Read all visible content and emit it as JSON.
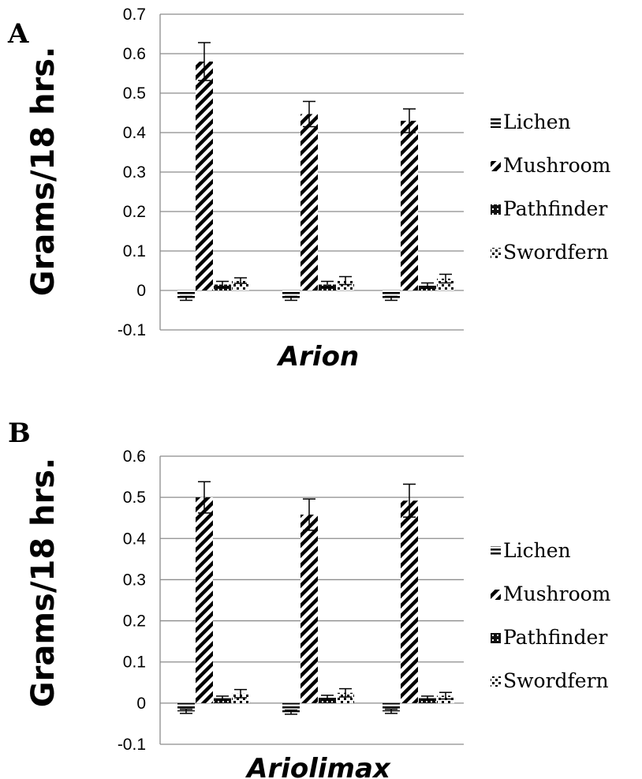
{
  "chart_data": [
    {
      "type": "bar",
      "panel_label": "A",
      "title": "",
      "xlabel": "Arion",
      "ylabel": "Grams/18 hrs.",
      "ylim": [
        -0.1,
        0.7
      ],
      "yticks": [
        "0.7",
        "0.6",
        "0.5",
        "0.4",
        "0.3",
        "0.2",
        "0.1",
        "0",
        "-0.1"
      ],
      "tick_values": [
        0.7,
        0.6,
        0.5,
        0.4,
        0.3,
        0.2,
        0.1,
        0,
        -0.1
      ],
      "grid": true,
      "legend_position": "right",
      "categories": [
        "",
        "",
        ""
      ],
      "series": [
        {
          "name": "Lichen",
          "pattern": "horizontal",
          "values": [
            -0.02,
            -0.02,
            -0.02
          ],
          "errors": [
            0.005,
            0.005,
            0.005
          ]
        },
        {
          "name": "Mushroom",
          "pattern": "diagonal",
          "values": [
            0.58,
            0.447,
            0.43
          ],
          "errors": [
            0.048,
            0.032,
            0.03
          ]
        },
        {
          "name": "Pathfinder",
          "pattern": "dark-check",
          "values": [
            0.015,
            0.015,
            0.012
          ],
          "errors": [
            0.008,
            0.008,
            0.007
          ]
        },
        {
          "name": "Swordfern",
          "pattern": "light-check",
          "values": [
            0.025,
            0.025,
            0.03
          ],
          "errors": [
            0.007,
            0.01,
            0.011
          ]
        }
      ]
    },
    {
      "type": "bar",
      "panel_label": "B",
      "title": "",
      "xlabel": "Ariolimax",
      "ylabel": "Grams/18 hrs.",
      "ylim": [
        -0.1,
        0.6
      ],
      "yticks": [
        "0.6",
        "0.5",
        "0.4",
        "0.3",
        "0.2",
        "0.1",
        "0",
        "-0.1"
      ],
      "tick_values": [
        0.6,
        0.5,
        0.4,
        0.3,
        0.2,
        0.1,
        0,
        -0.1
      ],
      "grid": true,
      "legend_position": "right",
      "categories": [
        "",
        "",
        ""
      ],
      "series": [
        {
          "name": "Lichen",
          "pattern": "horizontal",
          "values": [
            -0.02,
            -0.022,
            -0.02
          ],
          "errors": [
            0.005,
            0.005,
            0.005
          ]
        },
        {
          "name": "Mushroom",
          "pattern": "diagonal",
          "values": [
            0.5,
            0.458,
            0.492
          ],
          "errors": [
            0.038,
            0.038,
            0.04
          ]
        },
        {
          "name": "Pathfinder",
          "pattern": "dark-check",
          "values": [
            0.012,
            0.013,
            0.012
          ],
          "errors": [
            0.005,
            0.006,
            0.005
          ]
        },
        {
          "name": "Swordfern",
          "pattern": "light-check",
          "values": [
            0.023,
            0.025,
            0.018
          ],
          "errors": [
            0.01,
            0.01,
            0.008
          ]
        }
      ]
    }
  ],
  "colors": {
    "bar_stroke": "#000000",
    "grid": "#8c8c8c",
    "background": "#ffffff",
    "error_bar": "#000000"
  }
}
